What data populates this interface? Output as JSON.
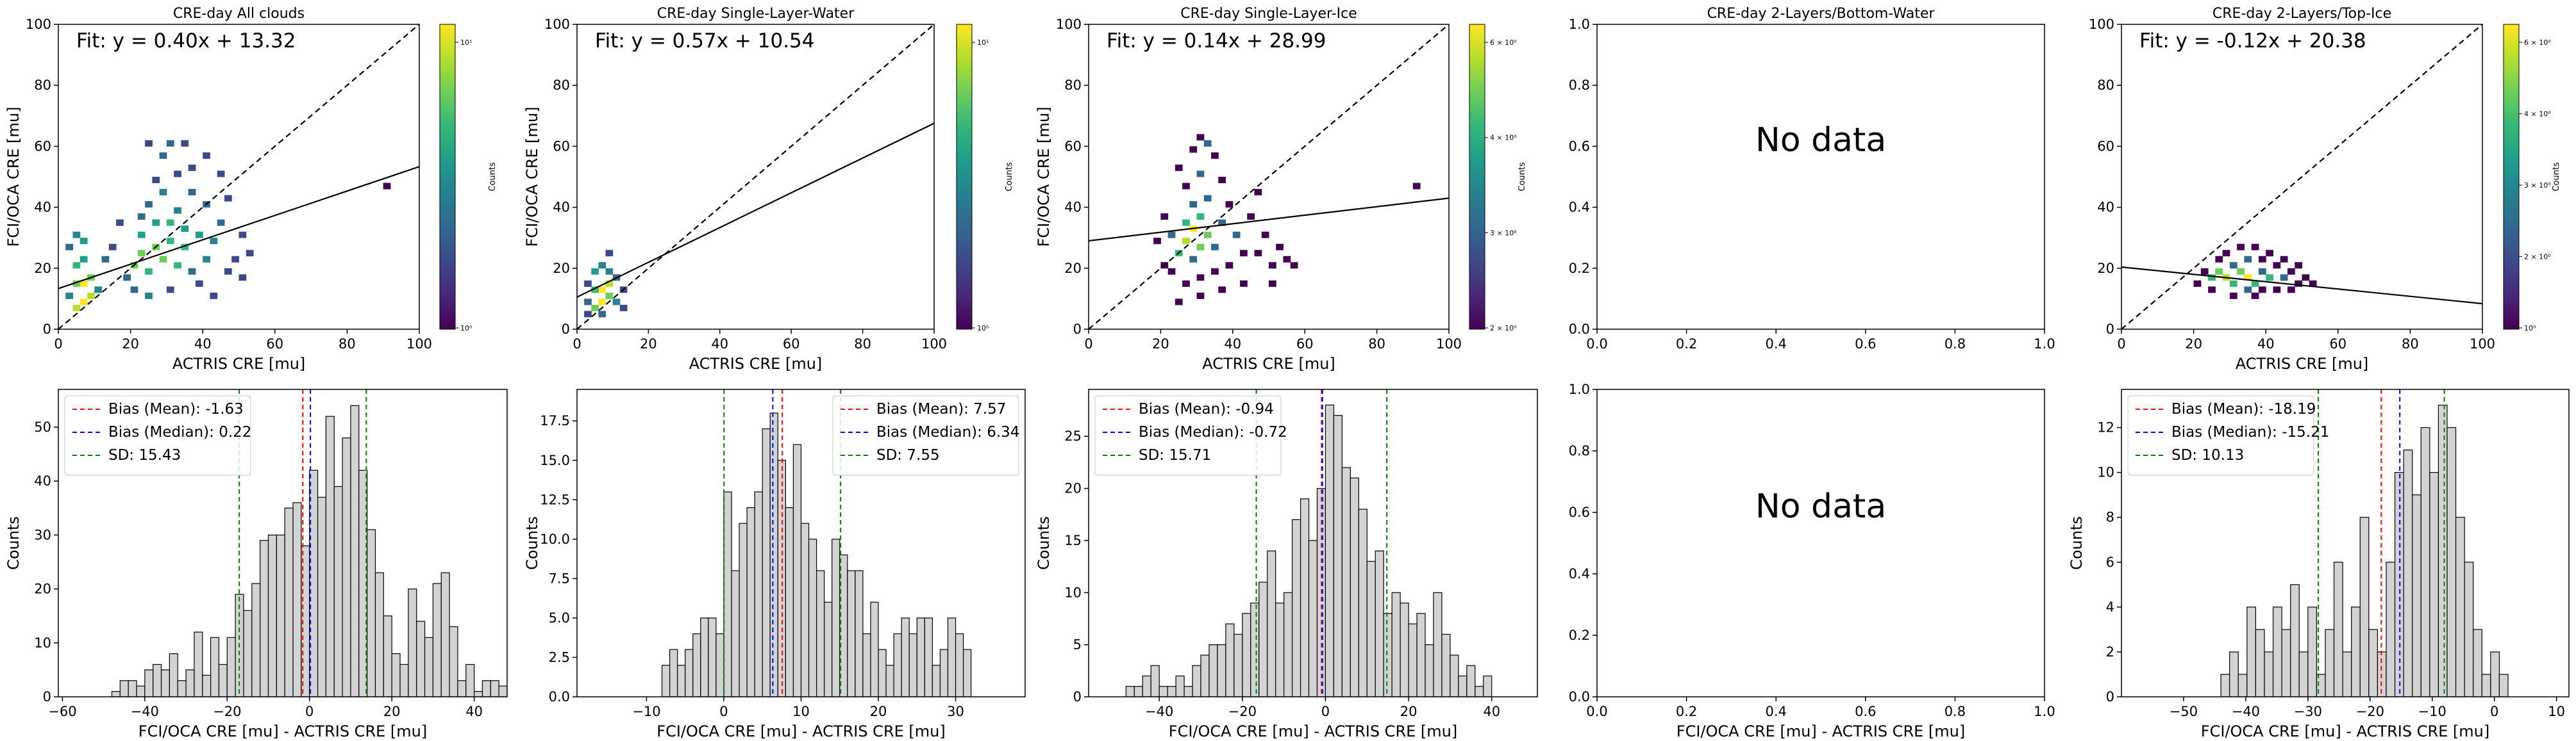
{
  "chart_data": [
    {
      "type": "heatmap",
      "title": "CRE-day All clouds",
      "xlabel": "ACTRIS CRE [mu]",
      "ylabel": "FCI/OCA CRE [mu]",
      "xlim": [
        0,
        100
      ],
      "ylim": [
        0,
        100
      ],
      "xticks": [
        "0",
        "20",
        "40",
        "60",
        "80",
        "100"
      ],
      "yticks": [
        "0",
        "20",
        "40",
        "60",
        "80",
        "100"
      ],
      "fit_text": "Fit: y = 0.40x + 13.32",
      "fit": {
        "slope": 0.4,
        "intercept": 13.32
      },
      "one_to_one_line": true,
      "colorbar": {
        "label": "Counts",
        "scale": "log",
        "tick_labels": [
          "10⁰",
          "10¹"
        ],
        "colormap": "viridis"
      },
      "cells": [
        [
          4,
          6,
          20
        ],
        [
          6,
          8,
          25
        ],
        [
          8,
          10,
          18
        ],
        [
          4,
          14,
          15
        ],
        [
          6,
          14,
          30
        ],
        [
          8,
          16,
          12
        ],
        [
          2,
          10,
          4
        ],
        [
          4,
          20,
          8
        ],
        [
          6,
          22,
          6
        ],
        [
          10,
          12,
          5
        ],
        [
          2,
          26,
          3
        ],
        [
          4,
          30,
          4
        ],
        [
          6,
          28,
          6
        ],
        [
          20,
          20,
          14
        ],
        [
          22,
          24,
          12
        ],
        [
          24,
          18,
          9
        ],
        [
          26,
          26,
          11
        ],
        [
          28,
          22,
          15
        ],
        [
          30,
          28,
          10
        ],
        [
          32,
          20,
          9
        ],
        [
          34,
          26,
          8
        ],
        [
          22,
          30,
          7
        ],
        [
          26,
          34,
          6
        ],
        [
          30,
          34,
          8
        ],
        [
          34,
          32,
          7
        ],
        [
          24,
          40,
          3
        ],
        [
          28,
          44,
          4
        ],
        [
          32,
          38,
          5
        ],
        [
          36,
          44,
          3
        ],
        [
          38,
          30,
          6
        ],
        [
          40,
          22,
          5
        ],
        [
          42,
          28,
          4
        ],
        [
          44,
          34,
          3
        ],
        [
          46,
          18,
          2
        ],
        [
          40,
          40,
          3
        ],
        [
          36,
          52,
          2
        ],
        [
          28,
          56,
          3
        ],
        [
          24,
          60,
          2
        ],
        [
          30,
          60,
          3
        ],
        [
          34,
          60,
          2
        ],
        [
          40,
          56,
          2
        ],
        [
          44,
          50,
          2
        ],
        [
          46,
          42,
          2
        ],
        [
          50,
          30,
          2
        ],
        [
          52,
          24,
          2
        ],
        [
          20,
          12,
          3
        ],
        [
          24,
          10,
          4
        ],
        [
          18,
          16,
          3
        ],
        [
          14,
          26,
          2
        ],
        [
          12,
          22,
          3
        ],
        [
          38,
          14,
          2
        ],
        [
          42,
          10,
          2
        ],
        [
          30,
          12,
          2
        ],
        [
          36,
          18,
          3
        ],
        [
          48,
          22,
          2
        ],
        [
          50,
          16,
          2
        ],
        [
          26,
          48,
          2
        ],
        [
          32,
          50,
          2
        ],
        [
          22,
          36,
          3
        ],
        [
          16,
          34,
          2
        ],
        [
          90,
          46,
          1
        ]
      ]
    },
    {
      "type": "heatmap",
      "title": "CRE-day Single-Layer-Water",
      "xlabel": "ACTRIS CRE [mu]",
      "ylabel": "FCI/OCA CRE [mu]",
      "xlim": [
        0,
        100
      ],
      "ylim": [
        0,
        100
      ],
      "xticks": [
        "0",
        "20",
        "40",
        "60",
        "80",
        "100"
      ],
      "yticks": [
        "0",
        "20",
        "40",
        "60",
        "80",
        "100"
      ],
      "fit_text": "Fit: y = 0.57x + 10.54",
      "fit": {
        "slope": 0.57,
        "intercept": 10.54
      },
      "one_to_one_line": true,
      "colorbar": {
        "label": "Counts",
        "scale": "log",
        "tick_labels": [
          "10⁰",
          "10¹"
        ],
        "colormap": "viridis"
      },
      "cells": [
        [
          4,
          6,
          8
        ],
        [
          6,
          8,
          14
        ],
        [
          8,
          10,
          10
        ],
        [
          6,
          12,
          18
        ],
        [
          8,
          14,
          12
        ],
        [
          4,
          12,
          6
        ],
        [
          2,
          8,
          3
        ],
        [
          4,
          18,
          5
        ],
        [
          6,
          20,
          4
        ],
        [
          8,
          24,
          2
        ],
        [
          2,
          14,
          2
        ],
        [
          10,
          8,
          4
        ],
        [
          10,
          16,
          3
        ],
        [
          12,
          12,
          2
        ],
        [
          12,
          6,
          2
        ],
        [
          2,
          4,
          2
        ],
        [
          6,
          4,
          3
        ],
        [
          8,
          18,
          4
        ]
      ]
    },
    {
      "type": "heatmap",
      "title": "CRE-day Single-Layer-Ice",
      "xlabel": "ACTRIS CRE [mu]",
      "ylabel": "FCI/OCA CRE [mu]",
      "xlim": [
        0,
        100
      ],
      "ylim": [
        0,
        100
      ],
      "xticks": [
        "0",
        "20",
        "40",
        "60",
        "80",
        "100"
      ],
      "yticks": [
        "0",
        "20",
        "40",
        "60",
        "80",
        "100"
      ],
      "fit_text": "Fit: y = 0.14x + 28.99",
      "fit": {
        "slope": 0.14,
        "intercept": 28.99
      },
      "one_to_one_line": true,
      "colorbar": {
        "label": "Counts",
        "scale": "log",
        "tick_labels": [
          "2 × 10⁰",
          "3 × 10⁰",
          "4 × 10⁰",
          "6 × 10⁰"
        ],
        "colormap": "viridis"
      },
      "cells": [
        [
          26,
          28,
          5
        ],
        [
          28,
          32,
          6
        ],
        [
          30,
          26,
          4
        ],
        [
          24,
          24,
          3
        ],
        [
          32,
          30,
          4
        ],
        [
          26,
          34,
          3
        ],
        [
          30,
          36,
          3
        ],
        [
          34,
          26,
          2
        ],
        [
          22,
          30,
          2
        ],
        [
          28,
          22,
          2
        ],
        [
          36,
          34,
          2
        ],
        [
          28,
          40,
          2
        ],
        [
          32,
          42,
          2
        ],
        [
          26,
          46,
          1
        ],
        [
          30,
          50,
          2
        ],
        [
          34,
          56,
          1
        ],
        [
          24,
          52,
          1
        ],
        [
          28,
          58,
          1
        ],
        [
          32,
          60,
          2
        ],
        [
          30,
          62,
          1
        ],
        [
          36,
          48,
          1
        ],
        [
          38,
          40,
          1
        ],
        [
          40,
          30,
          2
        ],
        [
          42,
          24,
          1
        ],
        [
          44,
          36,
          1
        ],
        [
          20,
          36,
          1
        ],
        [
          18,
          28,
          1
        ],
        [
          22,
          18,
          1
        ],
        [
          26,
          14,
          1
        ],
        [
          30,
          16,
          1
        ],
        [
          34,
          18,
          1
        ],
        [
          38,
          20,
          1
        ],
        [
          46,
          24,
          1
        ],
        [
          48,
          30,
          1
        ],
        [
          50,
          20,
          1
        ],
        [
          52,
          26,
          1
        ],
        [
          54,
          22,
          1
        ],
        [
          42,
          14,
          1
        ],
        [
          36,
          12,
          1
        ],
        [
          24,
          8,
          1
        ],
        [
          30,
          10,
          1
        ],
        [
          46,
          44,
          1
        ],
        [
          50,
          14,
          1
        ],
        [
          56,
          20,
          1
        ],
        [
          20,
          20,
          1
        ],
        [
          90,
          46,
          1
        ]
      ]
    },
    {
      "type": "heatmap",
      "title": "CRE-day 2-Layers/Bottom-Water",
      "xlim": [
        0,
        1
      ],
      "ylim": [
        0,
        1
      ],
      "xticks": [
        "0.0",
        "0.2",
        "0.4",
        "0.6",
        "0.8",
        "1.0"
      ],
      "yticks": [
        "0.0",
        "0.2",
        "0.4",
        "0.6",
        "0.8",
        "1.0"
      ],
      "message": "No data",
      "cells": []
    },
    {
      "type": "heatmap",
      "title": "CRE-day 2-Layers/Top-Ice",
      "xlabel": "ACTRIS CRE [mu]",
      "ylabel": "",
      "xlim": [
        0,
        100
      ],
      "ylim": [
        0,
        100
      ],
      "xticks": [
        "0",
        "20",
        "40",
        "60",
        "80",
        "100"
      ],
      "yticks": [
        "0",
        "20",
        "40",
        "60",
        "80",
        "100"
      ],
      "fit_text": "Fit: y = -0.12x + 20.38",
      "fit": {
        "slope": -0.12,
        "intercept": 20.38
      },
      "one_to_one_line": true,
      "colorbar": {
        "label": "Counts",
        "scale": "log",
        "tick_labels": [
          "10⁰",
          "2 × 10⁰",
          "3 × 10⁰",
          "4 × 10⁰",
          "6 × 10⁰"
        ],
        "colormap": "viridis"
      },
      "cells": [
        [
          24,
          16,
          3
        ],
        [
          26,
          18,
          4
        ],
        [
          28,
          16,
          5
        ],
        [
          30,
          14,
          3
        ],
        [
          32,
          18,
          4
        ],
        [
          34,
          16,
          6
        ],
        [
          36,
          14,
          3
        ],
        [
          38,
          18,
          2
        ],
        [
          40,
          16,
          3
        ],
        [
          30,
          20,
          2
        ],
        [
          34,
          22,
          2
        ],
        [
          38,
          22,
          1
        ],
        [
          42,
          20,
          1
        ],
        [
          44,
          16,
          2
        ],
        [
          46,
          18,
          1
        ],
        [
          48,
          14,
          1
        ],
        [
          50,
          16,
          1
        ],
        [
          52,
          14,
          1
        ],
        [
          28,
          24,
          1
        ],
        [
          32,
          26,
          1
        ],
        [
          36,
          26,
          1
        ],
        [
          40,
          24,
          1
        ],
        [
          22,
          18,
          1
        ],
        [
          24,
          12,
          1
        ],
        [
          30,
          10,
          1
        ],
        [
          36,
          10,
          1
        ],
        [
          42,
          12,
          1
        ],
        [
          46,
          12,
          1
        ],
        [
          20,
          14,
          1
        ],
        [
          26,
          22,
          1
        ],
        [
          44,
          22,
          1
        ],
        [
          48,
          20,
          1
        ],
        [
          38,
          12,
          1
        ],
        [
          34,
          12,
          2
        ]
      ]
    },
    {
      "type": "bar",
      "subtype": "histogram",
      "xlabel": "FCI/OCA CRE [mu] - ACTRIS CRE [mu]",
      "ylabel": "Counts",
      "xlim": [
        -61,
        48
      ],
      "ylim": [
        0,
        57
      ],
      "xticks": [
        "−60",
        "−40",
        "−20",
        "0",
        "20",
        "40"
      ],
      "yticks": [
        "0",
        "10",
        "20",
        "30",
        "40",
        "50"
      ],
      "bin_start": -48,
      "bin_width": 2,
      "values": [
        1,
        3,
        3,
        2,
        5,
        6,
        5,
        8,
        3,
        5,
        12,
        4,
        11,
        6,
        11,
        19,
        16,
        21,
        29,
        30,
        30,
        35,
        36,
        28,
        42,
        37,
        52,
        39,
        48,
        54,
        42,
        31,
        23,
        15,
        8,
        6,
        20,
        14,
        11,
        21,
        23,
        13,
        3,
        6,
        1,
        3,
        3,
        2
      ],
      "lines": [
        {
          "label": "Bias (Mean): -1.63",
          "x": -1.63,
          "color": "#ff0000"
        },
        {
          "label": "Bias (Median): 0.22",
          "x": 0.22,
          "color": "#0000ff"
        },
        {
          "label": "SD: 15.43",
          "x": 13.8,
          "color": "#008000"
        }
      ],
      "sd_low": -17.06,
      "legend_position": "top-left"
    },
    {
      "type": "bar",
      "subtype": "histogram",
      "xlabel": "FCI/OCA CRE [mu] - ACTRIS CRE [mu]",
      "ylabel": "Counts",
      "xlim": [
        -19,
        39
      ],
      "ylim": [
        0,
        19.5
      ],
      "xticks": [
        "−10",
        "0",
        "10",
        "20",
        "30"
      ],
      "yticks": [
        "0.0",
        "2.5",
        "5.0",
        "7.5",
        "10.0",
        "12.5",
        "15.0",
        "17.5"
      ],
      "bin_start": -8,
      "bin_width": 1,
      "values": [
        2,
        3,
        2,
        3,
        4,
        5,
        5,
        4,
        13,
        8,
        11,
        12,
        13,
        17,
        18,
        15,
        12,
        16,
        11,
        10,
        8,
        6,
        10,
        9,
        8,
        8,
        4,
        6,
        3,
        2,
        4,
        5,
        4,
        5,
        5,
        2,
        3,
        5,
        4,
        3
      ],
      "lines": [
        {
          "label": "Bias (Mean): 7.57",
          "x": 7.57,
          "color": "#ff0000"
        },
        {
          "label": "Bias (Median): 6.34",
          "x": 6.34,
          "color": "#0000ff"
        },
        {
          "label": "SD: 7.55",
          "x": 15.12,
          "color": "#008000"
        }
      ],
      "sd_low": 0.02,
      "legend_position": "top-right"
    },
    {
      "type": "bar",
      "subtype": "histogram",
      "xlabel": "FCI/OCA CRE [mu] - ACTRIS CRE [mu]",
      "ylabel": "Counts",
      "xlim": [
        -57,
        51
      ],
      "ylim": [
        0,
        29.5
      ],
      "xticks": [
        "−40",
        "−20",
        "0",
        "20",
        "40"
      ],
      "yticks": [
        "0",
        "5",
        "10",
        "15",
        "20",
        "25"
      ],
      "bin_start": -48,
      "bin_width": 2,
      "values": [
        1,
        1,
        2,
        3,
        1,
        1,
        2,
        1,
        3,
        4,
        5,
        5,
        7,
        6,
        8,
        9,
        11,
        14,
        9,
        10,
        17,
        19,
        15,
        20,
        28,
        27,
        22,
        21,
        18,
        13,
        14,
        8,
        10,
        9,
        7,
        8,
        5,
        10,
        6,
        4,
        2,
        3,
        1,
        2
      ],
      "lines": [
        {
          "label": "Bias (Mean): -0.94",
          "x": -0.94,
          "color": "#ff0000"
        },
        {
          "label": "Bias (Median): -0.72",
          "x": -0.72,
          "color": "#0000ff"
        },
        {
          "label": "SD: 15.71",
          "x": 14.77,
          "color": "#008000"
        }
      ],
      "sd_low": -16.65,
      "legend_position": "top-left"
    },
    {
      "type": "bar",
      "subtype": "histogram",
      "xlim": [
        0,
        1
      ],
      "ylim": [
        0,
        1
      ],
      "xticks": [
        "0.0",
        "0.2",
        "0.4",
        "0.6",
        "0.8",
        "1.0"
      ],
      "yticks": [
        "0.0",
        "0.2",
        "0.4",
        "0.6",
        "0.8",
        "1.0"
      ],
      "xlabel": "FCI/OCA CRE [mu] - ACTRIS CRE [mu]",
      "message": "No data",
      "values": [],
      "lines": []
    },
    {
      "type": "bar",
      "subtype": "histogram",
      "xlabel": "FCI/OCA CRE [mu] - ACTRIS CRE [mu]",
      "ylabel": "Counts",
      "xlim": [
        -60,
        12
      ],
      "ylim": [
        0,
        13.7
      ],
      "xticks": [
        "−50",
        "−40",
        "−30",
        "−20",
        "−10",
        "0",
        "10"
      ],
      "yticks": [
        "0",
        "2",
        "4",
        "6",
        "8",
        "10",
        "12"
      ],
      "bin_start": -44,
      "bin_width": 1.4,
      "values": [
        1,
        2,
        1,
        4,
        3,
        2,
        4,
        3,
        5,
        2,
        4,
        1,
        3,
        6,
        2,
        4,
        8,
        3,
        2,
        6,
        10,
        11,
        9,
        12,
        10,
        13,
        12,
        8,
        6,
        3,
        1,
        2,
        1
      ],
      "lines": [
        {
          "label": "Bias (Mean): -18.19",
          "x": -18.19,
          "color": "#ff0000"
        },
        {
          "label": "Bias (Median): -15.21",
          "x": -15.21,
          "color": "#0000ff"
        },
        {
          "label": "SD: 10.13",
          "x": -8.06,
          "color": "#008000"
        }
      ],
      "sd_low": -28.32,
      "legend_position": "top-left"
    }
  ]
}
